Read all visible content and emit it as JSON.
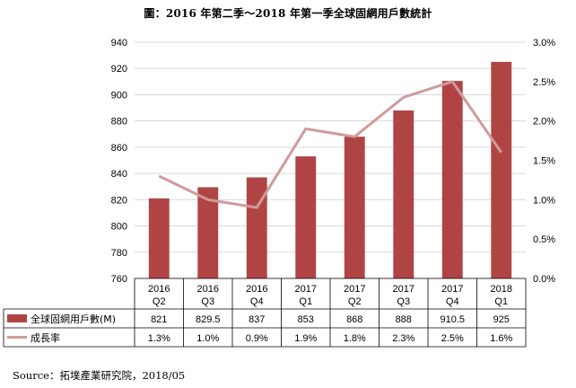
{
  "title": "圖：2016 年第二季～2018 年第一季全球固網用戶數統計",
  "source": "Source：拓墣產業研究院，2018/05",
  "chart_data": {
    "type": "bar",
    "title": "圖：2016 年第二季～2018 年第一季全球固網用戶數統計",
    "categories": [
      [
        "2016",
        "Q2"
      ],
      [
        "2016",
        "Q3"
      ],
      [
        "2016",
        "Q4"
      ],
      [
        "2017",
        "Q1"
      ],
      [
        "2017",
        "Q2"
      ],
      [
        "2017",
        "Q3"
      ],
      [
        "2017",
        "Q4"
      ],
      [
        "2018",
        "Q1"
      ]
    ],
    "y_left": {
      "min": 760,
      "max": 940,
      "step": 20,
      "tick_labels": [
        "760",
        "780",
        "800",
        "820",
        "840",
        "860",
        "880",
        "900",
        "920",
        "940"
      ]
    },
    "y_right": {
      "min": 0,
      "max": 3.0,
      "step": 0.5,
      "tick_labels": [
        "0.0%",
        "0.5%",
        "1.0%",
        "1.5%",
        "2.0%",
        "2.5%",
        "3.0%"
      ]
    },
    "grid": true,
    "legend_placement": "data-table",
    "series": [
      {
        "name": "全球固網用戶數(M)",
        "kind": "bar",
        "axis": "left",
        "color": "#B04444",
        "values": [
          821,
          829.5,
          837,
          853,
          868,
          888,
          910.5,
          925
        ],
        "labels": [
          "821",
          "829.5",
          "837",
          "853",
          "868",
          "888",
          "910.5",
          "925"
        ]
      },
      {
        "name": "成長率",
        "kind": "line",
        "axis": "right",
        "color": "#D19A9A",
        "values": [
          1.3,
          1.0,
          0.9,
          1.9,
          1.8,
          2.3,
          2.5,
          1.6
        ],
        "labels": [
          "1.3%",
          "1.0%",
          "0.9%",
          "1.9%",
          "1.8%",
          "2.3%",
          "2.5%",
          "1.6%"
        ]
      }
    ]
  }
}
